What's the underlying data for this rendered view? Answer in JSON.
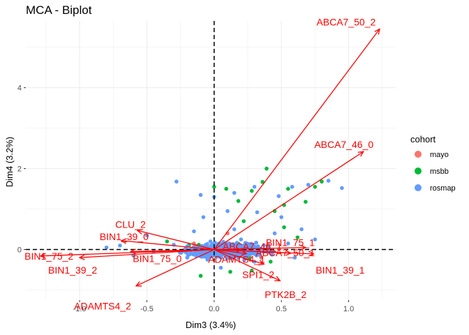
{
  "chart_data": {
    "type": "scatter",
    "title": "MCA - Biplot",
    "xlabel": "Dim3 (3.4%)",
    "ylabel": "Dim4 (3.2%)",
    "xlim": [
      -1.4,
      1.35
    ],
    "ylim": [
      -1.25,
      5.65
    ],
    "xticks": [
      -1.0,
      -0.5,
      0.0,
      0.5,
      1.0
    ],
    "xtick_labels": [
      "-1.0",
      "-0.5",
      "0.0",
      "0.5",
      "1.0"
    ],
    "yticks": [
      0,
      2,
      4
    ],
    "ytick_labels": [
      "0",
      "2",
      "4"
    ],
    "grid": true,
    "reference_lines": {
      "x": 0,
      "y": 0,
      "style": "dashed"
    },
    "legend": {
      "title": "cohort",
      "placement": "right",
      "entries": [
        {
          "name": "mayo",
          "color": "#F8766D"
        },
        {
          "name": "msbb",
          "color": "#00BA38"
        },
        {
          "name": "rosmap",
          "color": "#619CFF"
        }
      ]
    },
    "arrow_color": "#FF0000",
    "variables": [
      {
        "label": "ABCA7_50_2",
        "x": 1.23,
        "y": 5.45
      },
      {
        "label": "ABCA7_46_0",
        "x": 1.11,
        "y": 2.42
      },
      {
        "label": "CLU_2",
        "x": -0.57,
        "y": 0.47
      },
      {
        "label": "BIN1_39_0",
        "x": -0.69,
        "y": 0.22
      },
      {
        "label": "BIN1_75_2",
        "x": -1.29,
        "y": -0.16
      },
      {
        "label": "BIN1_39_2",
        "x": -1.0,
        "y": -0.2
      },
      {
        "label": "BIN1_75_0",
        "x": -0.62,
        "y": -0.05
      },
      {
        "label": "ABCA7_46_1",
        "x": 0.2,
        "y": -0.01
      },
      {
        "label": "ADAMTS4_1",
        "x": 0.24,
        "y": -0.1
      },
      {
        "label": "ADAMTS4_2",
        "x": -0.58,
        "y": -0.9
      },
      {
        "label": "ABCA7_50_1",
        "x": 0.57,
        "y": -0.09
      },
      {
        "label": "SPI1_2",
        "x": 0.37,
        "y": -0.36
      },
      {
        "label": "PTK2B_2",
        "x": 0.49,
        "y": -0.77
      },
      {
        "label": "BIN1_75_1",
        "x": 0.68,
        "y": 0.05
      },
      {
        "label": "BIN1_39_1",
        "x": 0.74,
        "y": -0.11
      }
    ],
    "points": [
      {
        "cohort": "msbb",
        "x": 0.39,
        "y": 2.0
      },
      {
        "cohort": "msbb",
        "x": 0.36,
        "y": 1.67
      },
      {
        "cohort": "msbb",
        "x": 0.0,
        "y": 1.55
      },
      {
        "cohort": "msbb",
        "x": 0.09,
        "y": 1.5
      },
      {
        "cohort": "msbb",
        "x": 0.28,
        "y": 1.45
      },
      {
        "cohort": "msbb",
        "x": 0.55,
        "y": 1.5
      },
      {
        "cohort": "msbb",
        "x": 0.75,
        "y": 1.55
      },
      {
        "cohort": "msbb",
        "x": 0.8,
        "y": 1.68
      },
      {
        "cohort": "msbb",
        "x": 0.68,
        "y": 1.18
      },
      {
        "cohort": "msbb",
        "x": 0.52,
        "y": 1.1
      },
      {
        "cohort": "msbb",
        "x": 0.18,
        "y": 1.2
      },
      {
        "cohort": "msbb",
        "x": 0.45,
        "y": 0.95
      },
      {
        "cohort": "msbb",
        "x": 0.52,
        "y": 0.55
      },
      {
        "cohort": "msbb",
        "x": 0.22,
        "y": 0.7
      },
      {
        "cohort": "msbb",
        "x": 0.62,
        "y": 0.3
      },
      {
        "cohort": "msbb",
        "x": 0.12,
        "y": -0.55
      },
      {
        "cohort": "msbb",
        "x": -0.1,
        "y": -0.65
      },
      {
        "cohort": "msbb",
        "x": 0.28,
        "y": -0.52
      },
      {
        "cohort": "msbb",
        "x": 0.42,
        "y": -0.3
      },
      {
        "cohort": "msbb",
        "x": -0.35,
        "y": 0.2
      },
      {
        "cohort": "mayo",
        "x": 0.1,
        "y": 0.4
      },
      {
        "cohort": "mayo",
        "x": 0.35,
        "y": -0.2
      },
      {
        "cohort": "mayo",
        "x": -0.15,
        "y": 0.15
      },
      {
        "cohort": "rosmap",
        "x": -0.28,
        "y": 1.68
      },
      {
        "cohort": "rosmap",
        "x": 0.0,
        "y": 1.3
      },
      {
        "cohort": "rosmap",
        "x": -0.1,
        "y": 1.35
      },
      {
        "cohort": "rosmap",
        "x": 0.15,
        "y": 1.4
      },
      {
        "cohort": "rosmap",
        "x": 0.3,
        "y": 1.55
      },
      {
        "cohort": "rosmap",
        "x": 0.58,
        "y": 1.55
      },
      {
        "cohort": "rosmap",
        "x": 0.7,
        "y": 1.6
      },
      {
        "cohort": "rosmap",
        "x": 0.85,
        "y": 1.7
      },
      {
        "cohort": "rosmap",
        "x": 0.95,
        "y": 1.52
      },
      {
        "cohort": "rosmap",
        "x": 0.48,
        "y": 1.32
      },
      {
        "cohort": "rosmap",
        "x": 0.5,
        "y": 0.8
      },
      {
        "cohort": "rosmap",
        "x": 0.1,
        "y": 0.95
      },
      {
        "cohort": "rosmap",
        "x": -0.08,
        "y": 0.8
      },
      {
        "cohort": "rosmap",
        "x": 0.32,
        "y": 0.92
      },
      {
        "cohort": "rosmap",
        "x": 0.65,
        "y": 0.5
      },
      {
        "cohort": "rosmap",
        "x": -0.5,
        "y": 0.35
      },
      {
        "cohort": "rosmap",
        "x": -0.7,
        "y": 0.1
      },
      {
        "cohort": "rosmap",
        "x": -0.45,
        "y": -0.05
      },
      {
        "cohort": "rosmap",
        "x": -0.3,
        "y": 0.12
      },
      {
        "cohort": "rosmap",
        "x": -0.2,
        "y": -0.2
      },
      {
        "cohort": "rosmap",
        "x": 0.2,
        "y": 0.25
      },
      {
        "cohort": "rosmap",
        "x": 0.4,
        "y": 0.1
      },
      {
        "cohort": "rosmap",
        "x": 0.55,
        "y": 0.15
      },
      {
        "cohort": "rosmap",
        "x": 0.3,
        "y": -0.3
      },
      {
        "cohort": "rosmap",
        "x": 0.05,
        "y": -0.45
      },
      {
        "cohort": "rosmap",
        "x": -0.05,
        "y": -0.25
      },
      {
        "cohort": "rosmap",
        "x": 0.15,
        "y": 0.5
      },
      {
        "cohort": "rosmap",
        "x": -0.15,
        "y": 0.45
      },
      {
        "cohort": "rosmap",
        "x": 0.45,
        "y": 0.4
      },
      {
        "cohort": "rosmap",
        "x": 0.6,
        "y": -0.2
      },
      {
        "cohort": "rosmap",
        "x": -0.6,
        "y": -0.15
      },
      {
        "cohort": "rosmap",
        "x": -0.8,
        "y": 0.05
      },
      {
        "cohort": "rosmap",
        "x": 0.75,
        "y": 0.25
      }
    ]
  }
}
